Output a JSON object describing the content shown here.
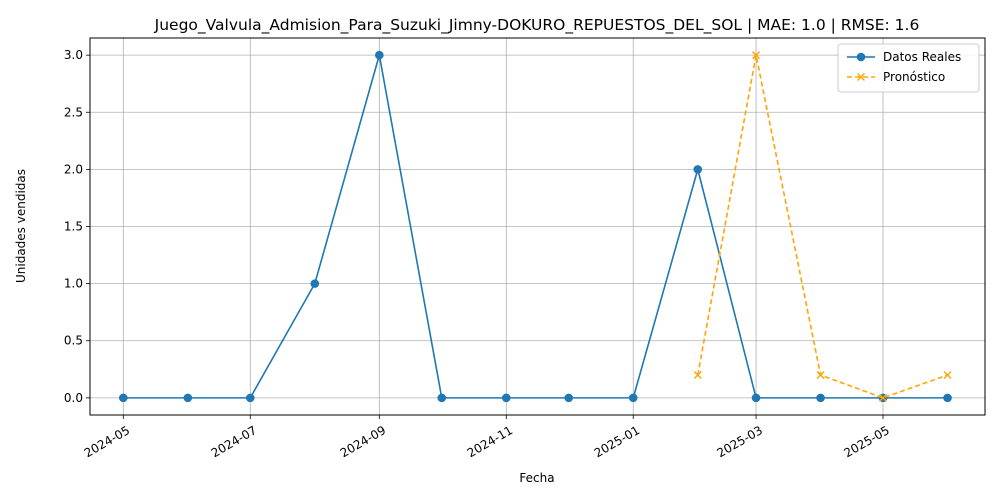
{
  "chart_data": {
    "type": "line",
    "title": "Juego_Valvula_Admision_Para_Suzuki_Jimny-DOKURO_REPUESTOS_DEL_SOL | MAE: 1.0 | RMSE: 1.6",
    "xlabel": "Fecha",
    "ylabel": "Unidades vendidas",
    "x_ticks": [
      "2024-05",
      "2024-07",
      "2024-09",
      "2024-11",
      "2025-01",
      "2025-03",
      "2025-05"
    ],
    "y_ticks": [
      "0.0",
      "0.5",
      "1.0",
      "1.5",
      "2.0",
      "2.5",
      "3.0"
    ],
    "xlim": [
      "2024-04-15",
      "2025-06-19"
    ],
    "ylim": [
      -0.15,
      3.15
    ],
    "grid": true,
    "legend_position": "top-right",
    "series": [
      {
        "name": "Datos Reales",
        "color": "#1f77b4",
        "marker": "circle",
        "line_style": "solid",
        "x": [
          "2024-05-01",
          "2024-06-01",
          "2024-07-01",
          "2024-08-01",
          "2024-09-01",
          "2024-10-01",
          "2024-11-01",
          "2024-12-01",
          "2025-01-01",
          "2025-02-01",
          "2025-03-01",
          "2025-04-01",
          "2025-05-01",
          "2025-06-01"
        ],
        "values": [
          0,
          0,
          0,
          1,
          3,
          0,
          0,
          0,
          0,
          2,
          0,
          0,
          0,
          0
        ]
      },
      {
        "name": "Pronóstico",
        "color": "#ffa500",
        "marker": "x",
        "line_style": "dashed",
        "x": [
          "2025-02-01",
          "2025-03-01",
          "2025-04-01",
          "2025-05-01",
          "2025-06-01"
        ],
        "values": [
          0.2,
          3.0,
          0.2,
          0.0,
          0.2
        ]
      }
    ]
  }
}
